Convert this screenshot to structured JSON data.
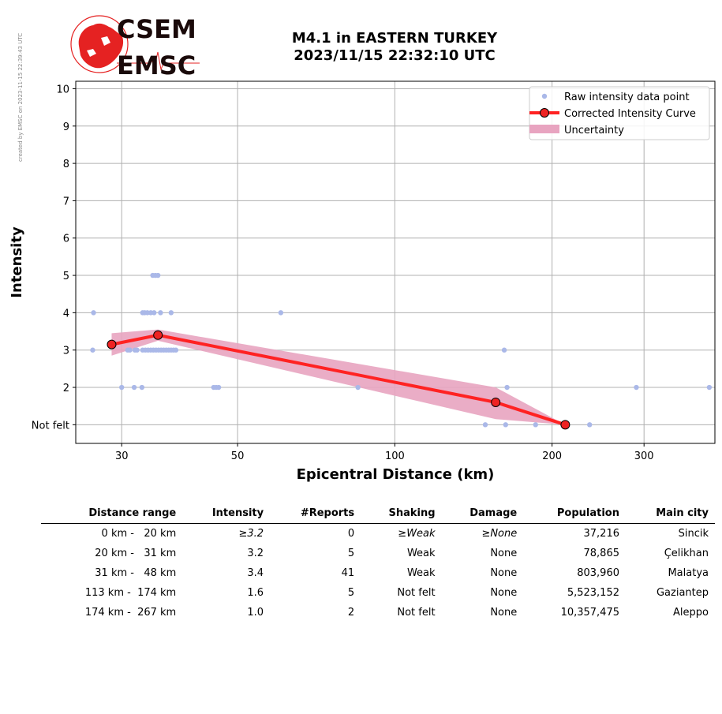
{
  "credit": "created by EMSC on 2023-11-15 22:39:43 UTC",
  "logo": {
    "line1": "CSEM",
    "line2": "EMSC",
    "color": "#e52222"
  },
  "title": {
    "line1": "M4.1 in EASTERN TURKEY",
    "line2": "2023/11/15 22:32:10 UTC"
  },
  "chart_data": {
    "type": "scatter",
    "xlabel": "Epicentral Distance (km)",
    "ylabel": "Intensity",
    "x_scale": "log",
    "xlim": [
      24.5,
      410
    ],
    "ylim": [
      0.5,
      10.2
    ],
    "xticks": [
      30,
      50,
      100,
      200,
      300
    ],
    "yticks": [
      {
        "value": 1,
        "label": "Not felt"
      },
      {
        "value": 2,
        "label": "2"
      },
      {
        "value": 3,
        "label": "3"
      },
      {
        "value": 4,
        "label": "4"
      },
      {
        "value": 5,
        "label": "5"
      },
      {
        "value": 6,
        "label": "6"
      },
      {
        "value": 7,
        "label": "7"
      },
      {
        "value": 8,
        "label": "8"
      },
      {
        "value": 9,
        "label": "9"
      },
      {
        "value": 10,
        "label": "10"
      }
    ],
    "grid": true,
    "legend": {
      "placement": "top-right",
      "entries": [
        "Raw intensity data point",
        "Corrected Intensity Curve",
        "Uncertainty"
      ]
    },
    "colors": {
      "raw": "#aab8e8",
      "curve": "#ff2222",
      "marker": "#ee2222",
      "band": "#e8a4c0"
    },
    "raw_points": [
      [
        26.5,
        4
      ],
      [
        26.4,
        3
      ],
      [
        30.0,
        2
      ],
      [
        30.8,
        3
      ],
      [
        31.1,
        3
      ],
      [
        31.8,
        3
      ],
      [
        32.1,
        3
      ],
      [
        31.7,
        2
      ],
      [
        32.8,
        2
      ],
      [
        32.9,
        4
      ],
      [
        33.2,
        4
      ],
      [
        33.6,
        4
      ],
      [
        34.1,
        4
      ],
      [
        34.6,
        4
      ],
      [
        35.6,
        4
      ],
      [
        37.3,
        4
      ],
      [
        34.4,
        5
      ],
      [
        34.8,
        5
      ],
      [
        35.2,
        5
      ],
      [
        32.9,
        3
      ],
      [
        33.3,
        3
      ],
      [
        33.7,
        3
      ],
      [
        34.1,
        3
      ],
      [
        34.5,
        3
      ],
      [
        34.9,
        3
      ],
      [
        35.3,
        3
      ],
      [
        35.7,
        3
      ],
      [
        36.1,
        3
      ],
      [
        36.5,
        3
      ],
      [
        36.9,
        3
      ],
      [
        37.3,
        3
      ],
      [
        37.7,
        3
      ],
      [
        38.1,
        3
      ],
      [
        45.0,
        2
      ],
      [
        45.5,
        2
      ],
      [
        46.0,
        2
      ],
      [
        60.5,
        4
      ],
      [
        85.0,
        2
      ],
      [
        149,
        1
      ],
      [
        162,
        3
      ],
      [
        163,
        1
      ],
      [
        164,
        2
      ],
      [
        186,
        1
      ],
      [
        236,
        1
      ],
      [
        290,
        2
      ],
      [
        400,
        2
      ]
    ],
    "curve": [
      {
        "x": 28.7,
        "y": 3.15
      },
      {
        "x": 35.2,
        "y": 3.4
      },
      {
        "x": 156,
        "y": 1.6
      },
      {
        "x": 212,
        "y": 1.0
      }
    ],
    "band_upper": [
      [
        28.7,
        3.45
      ],
      [
        35.2,
        3.55
      ],
      [
        156,
        2.0
      ],
      [
        212,
        1.0
      ]
    ],
    "band_lower": [
      [
        28.7,
        2.85
      ],
      [
        35.2,
        3.25
      ],
      [
        156,
        1.15
      ],
      [
        212,
        1.0
      ]
    ]
  },
  "table": {
    "headers": [
      "Distance range",
      "Intensity",
      "#Reports",
      "Shaking",
      "Damage",
      "Population",
      "Main city"
    ],
    "rows": [
      [
        "0 km -   20 km",
        "≥3.2",
        "0",
        "≥Weak",
        "≥None",
        "37,216",
        "Sincik"
      ],
      [
        "20 km -   31 km",
        "3.2",
        "5",
        "Weak",
        "None",
        "78,865",
        "Çelikhan"
      ],
      [
        "31 km -   48 km",
        "3.4",
        "41",
        "Weak",
        "None",
        "803,960",
        "Malatya"
      ],
      [
        "113 km -  174 km",
        "1.6",
        "5",
        "Not felt",
        "None",
        "5,523,152",
        "Gaziantep"
      ],
      [
        "174 km -  267 km",
        "1.0",
        "2",
        "Not felt",
        "None",
        "10,357,475",
        "Aleppo"
      ]
    ]
  }
}
